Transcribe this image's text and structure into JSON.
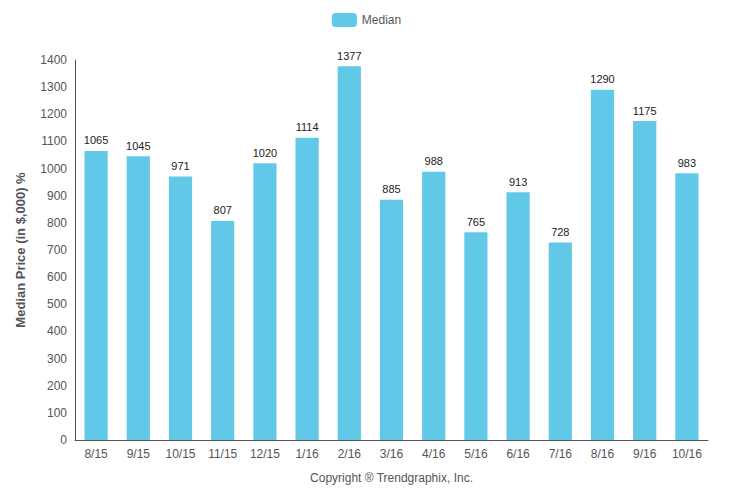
{
  "chart_data": {
    "type": "bar",
    "categories": [
      "8/15",
      "9/15",
      "10/15",
      "11/15",
      "12/15",
      "1/16",
      "2/16",
      "3/16",
      "4/16",
      "5/16",
      "6/16",
      "7/16",
      "8/16",
      "9/16",
      "10/16"
    ],
    "series": [
      {
        "name": "Median",
        "color": "#62C8E8",
        "values": [
          1065,
          1045,
          971,
          807,
          1020,
          1114,
          1377,
          885,
          988,
          765,
          913,
          728,
          1290,
          1175,
          983
        ]
      }
    ],
    "ylabel": "Median Price (in $,000) %",
    "xlabel": "Copyright ® Trendgraphix, Inc.",
    "ylim": [
      0,
      1400
    ],
    "yticks": [
      0,
      100,
      200,
      300,
      400,
      500,
      600,
      700,
      800,
      900,
      1000,
      1100,
      1200,
      1300,
      1400
    ],
    "grid": false,
    "legend": "top",
    "data_labels": true
  }
}
